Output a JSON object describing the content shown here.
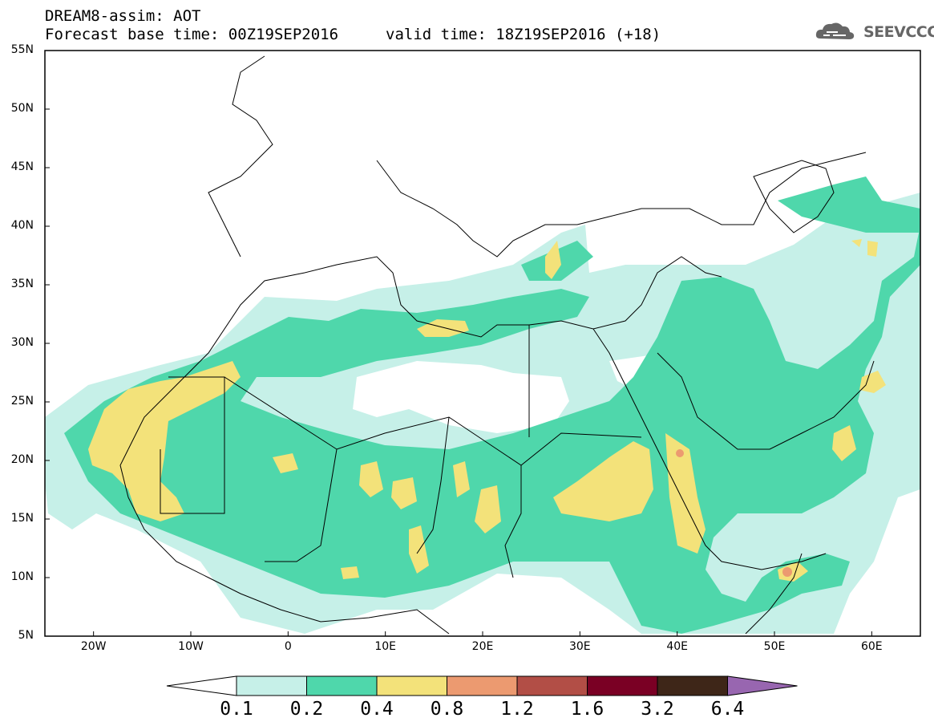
{
  "header": {
    "title": "DREAM8-assim: AOT",
    "base_time": "Forecast base time: 00Z19SEP2016",
    "valid_time": "valid time: 18Z19SEP2016 (+18)"
  },
  "logo": {
    "text": "SEEVCCC",
    "icon": "cloud-logo-icon"
  },
  "map": {
    "lon_range": [
      -25,
      65
    ],
    "lat_range": [
      5,
      55
    ],
    "lat_ticks": [
      "55N",
      "50N",
      "45N",
      "40N",
      "35N",
      "30N",
      "25N",
      "20N",
      "15N",
      "10N",
      "5N"
    ],
    "lon_ticks": [
      "20W",
      "10W",
      "0",
      "10E",
      "20E",
      "30E",
      "40E",
      "50E",
      "60E"
    ]
  },
  "colorbar": {
    "levels": [
      "0.1",
      "0.2",
      "0.4",
      "0.8",
      "1.2",
      "1.6",
      "3.2",
      "6.4"
    ],
    "colors": [
      "#ffffff",
      "#c6f0e8",
      "#4fd7ab",
      "#f3e27a",
      "#ec9a70",
      "#b24e46",
      "#7a0024",
      "#3e2618",
      "#9866b0"
    ]
  }
}
